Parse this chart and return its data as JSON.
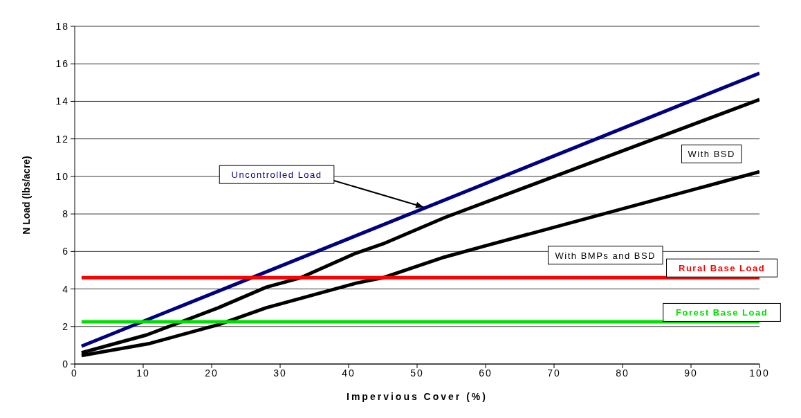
{
  "chart_data": {
    "type": "line",
    "xlabel": "Impervious Cover (%)",
    "ylabel": "N Load (lbs/acre)",
    "xlim": [
      0,
      100
    ],
    "xticks": [
      0,
      10,
      20,
      30,
      40,
      50,
      60,
      70,
      80,
      90,
      100
    ],
    "ylim": [
      0,
      18
    ],
    "yticks": [
      0,
      2,
      4,
      6,
      8,
      10,
      12,
      14,
      16,
      18
    ],
    "grid": "y",
    "series": [
      {
        "name": "Uncontrolled Load",
        "color": "#000080",
        "x": [
          1,
          100
        ],
        "values": [
          0.95,
          15.5
        ]
      },
      {
        "name": "With BSD",
        "color": "#000000",
        "x": [
          1,
          10.5,
          21,
          28,
          33,
          41,
          45,
          54,
          100
        ],
        "values": [
          0.6,
          1.55,
          3.0,
          4.1,
          4.6,
          5.9,
          6.4,
          7.8,
          14.1
        ]
      },
      {
        "name": "With BMPs and BSD",
        "color": "#000000",
        "x": [
          1,
          11,
          21,
          28,
          33,
          41,
          45,
          54,
          60,
          100
        ],
        "values": [
          0.45,
          1.1,
          2.1,
          3.0,
          3.5,
          4.3,
          4.6,
          5.7,
          6.3,
          10.25
        ]
      },
      {
        "name": "Rural Base Load",
        "color": "#ff0000",
        "x": [
          1,
          100
        ],
        "values": [
          4.6,
          4.6
        ]
      },
      {
        "name": "Forest Base Load",
        "color": "#00e000",
        "x": [
          1,
          100
        ],
        "values": [
          2.25,
          2.25
        ]
      }
    ]
  }
}
